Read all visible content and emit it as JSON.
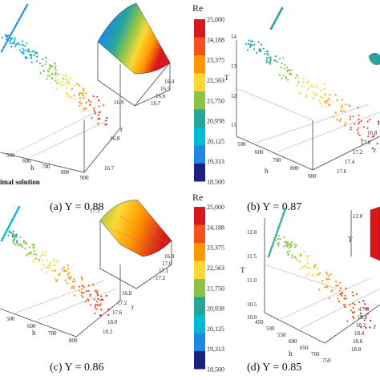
{
  "figure": {
    "colorbars": [
      {
        "title": "Re",
        "ticks": [
          "25,000",
          "24,188",
          "23,375",
          "22,563",
          "21,750",
          "20,938",
          "20,125",
          "19,313",
          "18,500"
        ],
        "colors": [
          "#d7191c",
          "#f4511e",
          "#ff9800",
          "#fdd835",
          "#8bc34a",
          "#26a69a",
          "#00bcd4",
          "#1e88e5",
          "#1a237e"
        ]
      },
      {
        "title": "Re",
        "ticks": [
          "25,000",
          "24,188",
          "23,375",
          "22,563",
          "21,750",
          "20,938",
          "20,125",
          "19,313",
          "18,500"
        ],
        "colors": [
          "#d7191c",
          "#f4511e",
          "#ff9800",
          "#fdd835",
          "#8bc34a",
          "#26a69a",
          "#00bcd4",
          "#1e88e5",
          "#1a237e"
        ]
      }
    ],
    "panels": [
      {
        "caption": "(a) Y = 0.88",
        "annotation": "timal solution",
        "h_ticks": [
          "500",
          "600",
          "700",
          "800",
          "900"
        ],
        "h_label": "h",
        "r_ticks": [
          "16.9",
          "16.8",
          "16.7"
        ],
        "r_label": "r",
        "inset_r_ticks": [
          "16.4",
          "16.5",
          "16.6",
          "16.7"
        ]
      },
      {
        "caption": "(b) Y = 0.87",
        "T_ticks": [
          "14",
          "13",
          "12",
          "11"
        ],
        "T_label": "T",
        "h_ticks": [
          "500",
          "600",
          "700",
          "800",
          "900"
        ],
        "h_label": "h",
        "r_ticks": [
          "16.8",
          "17.0",
          "17.2",
          "17.4",
          "17.6"
        ],
        "r_label": "r"
      },
      {
        "caption": "(c) Y = 0.86",
        "h_ticks": [
          "500",
          "600",
          "700",
          "800"
        ],
        "h_label": "h",
        "r_ticks": [
          "16.8",
          "17.2",
          "17.6",
          "18.0",
          "18.2"
        ],
        "r_label": "r",
        "inset_r_ticks": [
          "16.9",
          "17.0",
          "17.1",
          "17.2",
          "17.3"
        ]
      },
      {
        "caption": "(d) Y = 0.85",
        "T_ticks": [
          "12.0",
          "11.5",
          "11.0",
          "10.5",
          "10.0"
        ],
        "T_label": "T",
        "h_ticks": [
          "450",
          "500",
          "550",
          "600",
          "650",
          "700",
          "750"
        ],
        "h_label": "h",
        "r_ticks": [
          "17.8",
          "18.0",
          "18.2",
          "18.4",
          "18.6",
          "18.8"
        ],
        "r_label": "r"
      }
    ]
  }
}
